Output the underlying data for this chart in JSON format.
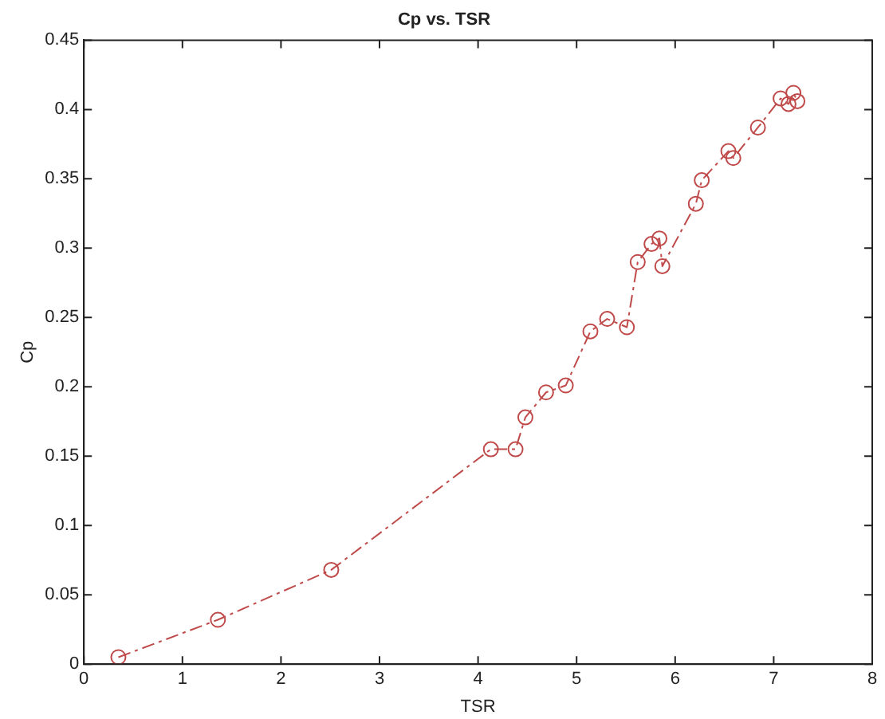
{
  "chart_data": {
    "type": "line",
    "title": "Cp vs. TSR",
    "xlabel": "TSR",
    "ylabel": "Cp",
    "x": [
      0.35,
      1.36,
      2.51,
      4.13,
      4.38,
      4.48,
      4.69,
      4.89,
      5.14,
      5.31,
      5.51,
      5.62,
      5.76,
      5.84,
      5.87,
      6.21,
      6.27,
      6.54,
      6.59,
      6.84,
      7.07,
      7.15,
      7.2,
      7.24
    ],
    "series": [
      {
        "color": "#c04a4a",
        "values": [
          0.005,
          0.032,
          0.068,
          0.155,
          0.155,
          0.178,
          0.196,
          0.201,
          0.24,
          0.249,
          0.243,
          0.29,
          0.303,
          0.307,
          0.287,
          0.332,
          0.349,
          0.37,
          0.365,
          0.387,
          0.408,
          0.404,
          0.412,
          0.406
        ]
      }
    ],
    "xlim": [
      0,
      8
    ],
    "xticks": [
      0,
      1,
      2,
      3,
      4,
      5,
      6,
      7,
      8
    ],
    "ylim": [
      0,
      0.45
    ],
    "yticks": [
      0,
      0.05,
      0.1,
      0.15,
      0.2,
      0.25,
      0.3,
      0.35,
      0.4,
      0.45
    ],
    "grid": false,
    "legend": false,
    "marker": "circle",
    "line_style": "dashed"
  }
}
